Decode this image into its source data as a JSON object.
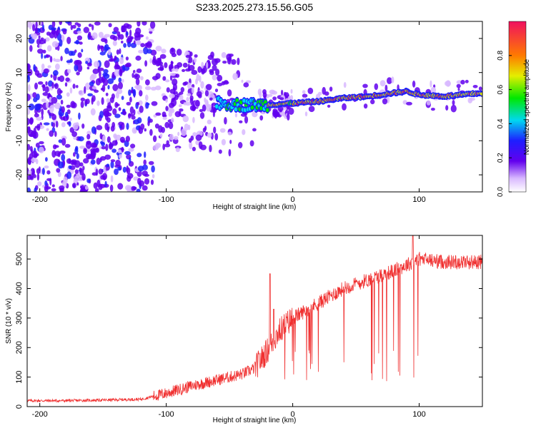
{
  "chart_data": [
    {
      "type": "heatmap",
      "title": "S233.2025.273.15.56.G05",
      "xlabel": "Height of straight line (km)",
      "ylabel": "Frequency (Hz)",
      "xlim": [
        -210,
        150
      ],
      "ylim": [
        -25,
        25
      ],
      "xticks": [
        -200,
        -100,
        0,
        100
      ],
      "yticks": [
        -20,
        -10,
        0,
        10,
        20
      ],
      "colorbar": {
        "label": "Normalized spectral amplitude",
        "range": [
          0,
          1
        ],
        "ticks": [
          "0.0",
          "0.2",
          "0.4",
          "0.6",
          "0.8"
        ],
        "colors": [
          "#ffffff",
          "#ab68ff",
          "#6200ee",
          "#1e1eff",
          "#00d8f0",
          "#00e800",
          "#e4ee00",
          "#ff7a00",
          "#f01030"
        ]
      },
      "ridge": {
        "description_points_x": [
          -60,
          -40,
          -20,
          0,
          20,
          40,
          60,
          80,
          90,
          100,
          120,
          150
        ],
        "description_points_y": [
          1,
          0.5,
          0.5,
          1,
          1.5,
          2.5,
          3,
          4,
          4.5,
          3.5,
          3,
          4
        ]
      }
    },
    {
      "type": "line",
      "xlabel": "Height of straight line (km)",
      "ylabel": "SNR (10 * v/v)",
      "xlim": [
        -210,
        150
      ],
      "ylim": [
        0,
        580
      ],
      "xticks": [
        -200,
        -100,
        0,
        100
      ],
      "yticks": [
        0,
        100,
        200,
        300,
        400,
        500
      ],
      "color": "#f03030",
      "series": [
        {
          "name": "SNR",
          "x": [
            -210,
            -180,
            -150,
            -120,
            -100,
            -80,
            -60,
            -40,
            -30,
            -20,
            -10,
            0,
            20,
            40,
            60,
            80,
            90,
            100,
            120,
            150
          ],
          "y": [
            20,
            20,
            22,
            25,
            45,
            70,
            90,
            110,
            130,
            190,
            260,
            300,
            350,
            400,
            430,
            460,
            480,
            500,
            490,
            490
          ]
        }
      ],
      "spikes": [
        {
          "x": -18,
          "y": 450
        },
        {
          "x": -15,
          "y": 330
        },
        {
          "x": 95,
          "y": 580
        }
      ]
    }
  ]
}
